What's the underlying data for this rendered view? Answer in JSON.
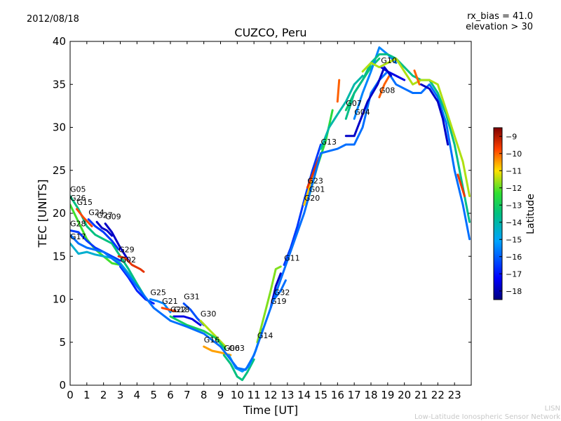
{
  "header": {
    "date": "2012/08/18",
    "rx_bias": "rx_bias = 41.0",
    "elevation": "elevation > 30"
  },
  "footer": {
    "line1": "LISN",
    "line2": "Low-Latitude Ionospheric Sensor Network"
  },
  "chart_data": {
    "type": "scatter",
    "title": "CUZCO, Peru",
    "xlabel": "Time [UT]",
    "ylabel": "TEC [UNITS]",
    "xlim": [
      0,
      24
    ],
    "ylim": [
      0,
      40
    ],
    "x_ticks": [
      0,
      1,
      2,
      3,
      4,
      5,
      6,
      7,
      8,
      9,
      10,
      11,
      12,
      13,
      14,
      15,
      16,
      17,
      18,
      19,
      20,
      21,
      22,
      23
    ],
    "y_ticks": [
      0,
      5,
      10,
      15,
      20,
      25,
      30,
      35,
      40
    ],
    "grid": false,
    "colorbar": {
      "label": "Latitude",
      "range": [
        -18.5,
        -8.5
      ],
      "ticks": [
        -9,
        -10,
        -11,
        -12,
        -13,
        -14,
        -15,
        -16,
        -17,
        -18
      ]
    },
    "series": [
      {
        "name": "G05",
        "lat": -13.5,
        "points": [
          [
            0,
            22.0
          ],
          [
            0.5,
            20.5
          ],
          [
            1.0,
            18.5
          ],
          [
            1.5,
            17.5
          ],
          [
            2.0,
            17.0
          ],
          [
            2.5,
            16.5
          ],
          [
            3.0,
            15.0
          ],
          [
            3.5,
            13.5
          ],
          [
            4.0,
            11.8
          ],
          [
            4.5,
            10.2
          ]
        ]
      },
      {
        "name": "G26",
        "lat": -12.2,
        "points": [
          [
            0,
            21.0
          ],
          [
            0.5,
            19.0
          ],
          [
            1.0,
            17.0
          ],
          [
            1.5,
            15.8
          ],
          [
            2.0,
            15.0
          ],
          [
            2.5,
            14.2
          ],
          [
            3.0,
            14.0
          ]
        ]
      },
      {
        "name": "G15",
        "lat": -9.8,
        "points": [
          [
            0.4,
            20.5
          ],
          [
            0.8,
            19.5
          ],
          [
            1.3,
            18.5
          ]
        ]
      },
      {
        "name": "G27",
        "lat": -17.8,
        "points": [
          [
            1.6,
            19.0
          ],
          [
            1.9,
            18.3
          ],
          [
            2.2,
            18.0
          ],
          [
            2.5,
            17.4
          ]
        ]
      },
      {
        "name": "G24",
        "lat": -16.5,
        "points": [
          [
            1.1,
            19.3
          ],
          [
            1.5,
            18.5
          ],
          [
            2.0,
            17.8
          ],
          [
            2.5,
            16.8
          ],
          [
            2.9,
            15.8
          ]
        ]
      },
      {
        "name": "G09",
        "lat": -17.8,
        "points": [
          [
            2.1,
            18.8
          ],
          [
            2.5,
            17.8
          ],
          [
            3.0,
            16.0
          ],
          [
            3.5,
            14.5
          ]
        ]
      },
      {
        "name": "G28",
        "lat": -16.5,
        "points": [
          [
            0,
            18.0
          ],
          [
            0.5,
            17.8
          ],
          [
            1.0,
            16.8
          ],
          [
            1.5,
            16.0
          ],
          [
            2.0,
            15.5
          ],
          [
            2.5,
            15.0
          ],
          [
            3.0,
            14.5
          ]
        ]
      },
      {
        "name": "G17",
        "lat": -14.5,
        "points": [
          [
            0,
            16.5
          ],
          [
            0.5,
            15.3
          ],
          [
            1.0,
            15.5
          ],
          [
            1.5,
            15.2
          ],
          [
            2.0,
            15.0
          ],
          [
            2.5,
            14.8
          ],
          [
            3.0,
            14.2
          ],
          [
            3.5,
            13.0
          ],
          [
            4.0,
            11.5
          ]
        ]
      },
      {
        "name": "G29",
        "lat": -9.5,
        "points": [
          [
            2.9,
            15.0
          ],
          [
            3.3,
            14.8
          ],
          [
            3.7,
            14.0
          ],
          [
            4.2,
            13.5
          ],
          [
            4.4,
            13.2
          ]
        ]
      },
      {
        "name": "G02",
        "lat": -16.8,
        "points": [
          [
            3.0,
            13.8
          ],
          [
            3.5,
            12.5
          ],
          [
            4.0,
            11.0
          ],
          [
            4.5,
            10.0
          ],
          [
            5.0,
            9.5
          ]
        ]
      },
      {
        "name": "G25",
        "lat": -15.5,
        "points": [
          [
            4.8,
            10.0
          ],
          [
            5.2,
            9.8
          ],
          [
            5.6,
            9.5
          ],
          [
            6.0,
            8.5
          ]
        ]
      },
      {
        "name": "G21",
        "lat": -9.8,
        "points": [
          [
            5.5,
            9.0
          ],
          [
            5.9,
            8.8
          ],
          [
            6.3,
            8.6
          ]
        ]
      },
      {
        "name": "G31",
        "lat": -16.2,
        "points": [
          [
            6.8,
            9.5
          ],
          [
            7.2,
            8.8
          ],
          [
            7.6,
            7.8
          ],
          [
            8.0,
            7.0
          ]
        ]
      },
      {
        "name": "G18",
        "lat": -17.5,
        "points": [
          [
            6.2,
            8.0
          ],
          [
            6.8,
            8.0
          ],
          [
            7.3,
            7.7
          ],
          [
            7.8,
            7.0
          ]
        ]
      },
      {
        "name": "G30",
        "lat": -11.5,
        "points": [
          [
            7.8,
            7.5
          ],
          [
            8.3,
            6.5
          ],
          [
            8.8,
            5.5
          ],
          [
            9.3,
            4.5
          ]
        ]
      },
      {
        "name": "G22",
        "lat": -13.0,
        "points": [
          [
            6.0,
            8.0
          ],
          [
            7.0,
            7.0
          ],
          [
            8.0,
            6.3
          ],
          [
            8.7,
            5.5
          ],
          [
            9.3,
            4.2
          ]
        ]
      },
      {
        "name": "G16",
        "lat": -10.5,
        "points": [
          [
            8.0,
            4.5
          ],
          [
            8.5,
            4.0
          ],
          [
            9.0,
            3.8
          ],
          [
            9.6,
            3.5
          ]
        ]
      },
      {
        "name": "G06",
        "lat": -13.5,
        "points": [
          [
            9.2,
            3.5
          ],
          [
            9.6,
            2.5
          ],
          [
            10.0,
            1.0
          ],
          [
            10.3,
            0.6
          ],
          [
            10.6,
            1.5
          ],
          [
            11.0,
            3.0
          ]
        ]
      },
      {
        "name": "G03",
        "lat": -15.2,
        "points": [
          [
            9.5,
            3.5
          ],
          [
            9.9,
            2.0
          ],
          [
            10.3,
            1.6
          ],
          [
            10.7,
            2.2
          ],
          [
            11.1,
            4.0
          ],
          [
            11.5,
            6.5
          ]
        ]
      },
      {
        "name": "G14",
        "lat": -11.8,
        "points": [
          [
            11.2,
            5.0
          ],
          [
            11.6,
            8.0
          ],
          [
            12.0,
            11.0
          ],
          [
            12.3,
            13.5
          ],
          [
            12.6,
            13.8
          ]
        ]
      },
      {
        "name": "G19",
        "lat": -17.8,
        "points": [
          [
            12.0,
            9.0
          ],
          [
            12.3,
            11.5
          ],
          [
            12.6,
            13.0
          ]
        ]
      },
      {
        "name": "G32",
        "lat": -15.8,
        "points": [
          [
            12.2,
            10.0
          ],
          [
            12.6,
            11.0
          ],
          [
            12.9,
            12.2
          ]
        ]
      },
      {
        "name": "G11",
        "lat": -16.5,
        "points": [
          [
            12.8,
            14.0
          ],
          [
            13.2,
            16.0
          ],
          [
            13.6,
            18.5
          ],
          [
            14.0,
            21.5
          ],
          [
            14.5,
            25.0
          ],
          [
            15.0,
            28.0
          ]
        ]
      },
      {
        "name": "G20",
        "lat": -10.8,
        "points": [
          [
            14.0,
            21.0
          ],
          [
            14.4,
            23.5
          ],
          [
            14.8,
            26.0
          ]
        ]
      },
      {
        "name": "G01",
        "lat": -12.5,
        "points": [
          [
            14.3,
            22.0
          ],
          [
            14.8,
            25.5
          ],
          [
            15.3,
            28.5
          ],
          [
            15.7,
            32.0
          ]
        ]
      },
      {
        "name": "G23",
        "lat": -9.5,
        "points": [
          [
            14.2,
            23.0
          ],
          [
            14.6,
            25.0
          ],
          [
            14.9,
            26.5
          ]
        ]
      },
      {
        "name": "G13",
        "lat": -14.0,
        "points": [
          [
            15.0,
            27.5
          ],
          [
            15.5,
            30.0
          ],
          [
            16.0,
            31.5
          ],
          [
            16.5,
            33.0
          ],
          [
            17.0,
            35.0
          ],
          [
            17.5,
            36.0
          ]
        ]
      },
      {
        "name": "G07",
        "lat": -13.2,
        "points": [
          [
            16.5,
            32.0
          ],
          [
            17.0,
            34.0
          ],
          [
            17.5,
            35.5
          ],
          [
            18.0,
            37.0
          ],
          [
            18.5,
            38.0
          ]
        ]
      },
      {
        "name": "G04",
        "lat": -15.5,
        "points": [
          [
            17.0,
            31.0
          ],
          [
            17.5,
            34.0
          ],
          [
            18.0,
            36.5
          ],
          [
            18.5,
            39.3
          ],
          [
            19.0,
            38.5
          ],
          [
            19.5,
            37.5
          ]
        ]
      },
      {
        "name": "G08",
        "lat": -10.0,
        "points": [
          [
            18.5,
            33.5
          ],
          [
            18.8,
            35.0
          ],
          [
            19.1,
            36.0
          ]
        ]
      },
      {
        "name": "G10",
        "lat": -17.5,
        "points": [
          [
            18.6,
            37.0
          ],
          [
            19.0,
            36.5
          ],
          [
            19.5,
            36.0
          ],
          [
            20.0,
            35.5
          ]
        ]
      },
      {
        "name": "",
        "lat": -15.8,
        "points": [
          [
            0.0,
            17.5
          ],
          [
            0.5,
            16.5
          ],
          [
            1.0,
            16.0
          ],
          [
            2.0,
            15.5
          ],
          [
            3.0,
            14.0
          ],
          [
            4.0,
            11.5
          ],
          [
            5.0,
            9.0
          ],
          [
            6.0,
            7.5
          ],
          [
            7.0,
            6.8
          ],
          [
            8.0,
            6.0
          ],
          [
            9.0,
            4.5
          ],
          [
            10.0,
            2.0
          ],
          [
            10.5,
            1.8
          ],
          [
            11.0,
            3.5
          ],
          [
            12.0,
            9.0
          ],
          [
            13.0,
            14.5
          ],
          [
            14.0,
            20.0
          ],
          [
            15.0,
            27.0
          ],
          [
            16.0,
            27.5
          ],
          [
            16.5,
            28.0
          ],
          [
            17.0,
            28.0
          ],
          [
            17.5,
            30.0
          ],
          [
            18.0,
            34.0
          ],
          [
            18.5,
            35.5
          ],
          [
            19.0,
            36.5
          ],
          [
            19.5,
            35.0
          ],
          [
            20.0,
            34.5
          ],
          [
            20.5,
            34.0
          ],
          [
            21.0,
            34.0
          ],
          [
            21.5,
            35.0
          ],
          [
            22.0,
            33.5
          ],
          [
            22.5,
            30.5
          ],
          [
            23.0,
            25.0
          ],
          [
            23.5,
            21.0
          ],
          [
            23.9,
            17.0
          ]
        ]
      },
      {
        "name": "",
        "lat": -13.6,
        "points": [
          [
            16.5,
            31.0
          ],
          [
            17.0,
            34.0
          ],
          [
            17.5,
            35.5
          ],
          [
            18.0,
            37.5
          ],
          [
            18.5,
            38.5
          ],
          [
            19.0,
            38.5
          ],
          [
            19.5,
            38.0
          ],
          [
            20.0,
            37.0
          ],
          [
            20.5,
            36.0
          ],
          [
            21.0,
            35.5
          ],
          [
            21.5,
            35.5
          ],
          [
            22.0,
            34.0
          ],
          [
            22.5,
            31.5
          ],
          [
            23.0,
            28.0
          ],
          [
            23.5,
            23.0
          ],
          [
            23.9,
            19.0
          ]
        ]
      },
      {
        "name": "",
        "lat": -11.5,
        "points": [
          [
            17.5,
            36.5
          ],
          [
            18.0,
            37.5
          ],
          [
            18.5,
            37.0
          ],
          [
            19.0,
            37.5
          ],
          [
            19.5,
            38.0
          ],
          [
            20.0,
            36.5
          ],
          [
            20.5,
            35.0
          ],
          [
            21.0,
            35.5
          ],
          [
            21.5,
            35.5
          ],
          [
            22.0,
            35.0
          ],
          [
            22.5,
            32.0
          ],
          [
            23.0,
            29.0
          ],
          [
            23.5,
            26.0
          ],
          [
            23.9,
            22.0
          ]
        ]
      },
      {
        "name": "",
        "lat": -17.8,
        "points": [
          [
            16.5,
            29.0
          ],
          [
            17.0,
            29.0
          ],
          [
            17.3,
            30.5
          ],
          [
            17.8,
            33.0
          ],
          [
            18.4,
            35.0
          ],
          [
            18.8,
            37.0
          ],
          [
            19.2,
            36.0
          ]
        ]
      },
      {
        "name": "",
        "lat": -10.0,
        "points": [
          [
            16.0,
            33.0
          ],
          [
            16.1,
            35.5
          ]
        ]
      },
      {
        "name": "",
        "lat": -10.0,
        "points": [
          [
            20.6,
            36.6
          ],
          [
            20.9,
            35.0
          ]
        ]
      },
      {
        "name": "",
        "lat": -17.8,
        "points": [
          [
            21.0,
            35.0
          ],
          [
            21.5,
            34.5
          ],
          [
            22.0,
            33.0
          ],
          [
            22.3,
            31.0
          ],
          [
            22.6,
            28.0
          ]
        ]
      },
      {
        "name": "",
        "lat": -9.6,
        "points": [
          [
            23.2,
            24.5
          ],
          [
            23.6,
            22.0
          ]
        ]
      }
    ]
  }
}
